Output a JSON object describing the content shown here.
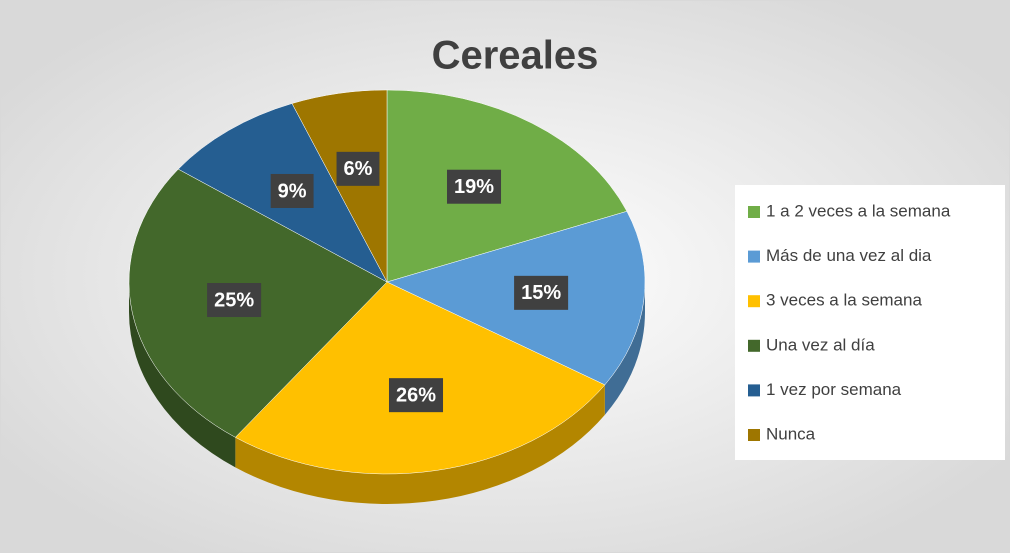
{
  "chart_data": {
    "type": "pie",
    "title": "Cereales",
    "categories": [
      "1 a 2 veces a la semana",
      "Más de una vez al dia",
      "3 veces a la semana",
      "Una vez al día",
      "1 vez por semana",
      "Nunca"
    ],
    "values": [
      19,
      15,
      26,
      25,
      9,
      6
    ],
    "value_labels": [
      "19%",
      "15%",
      "26%",
      "25%",
      "9%",
      "6%"
    ],
    "colors": [
      "#70ad47",
      "#5b9bd5",
      "#ffc000",
      "#43682b",
      "#255e91",
      "#9e7600"
    ],
    "legend": "right"
  }
}
